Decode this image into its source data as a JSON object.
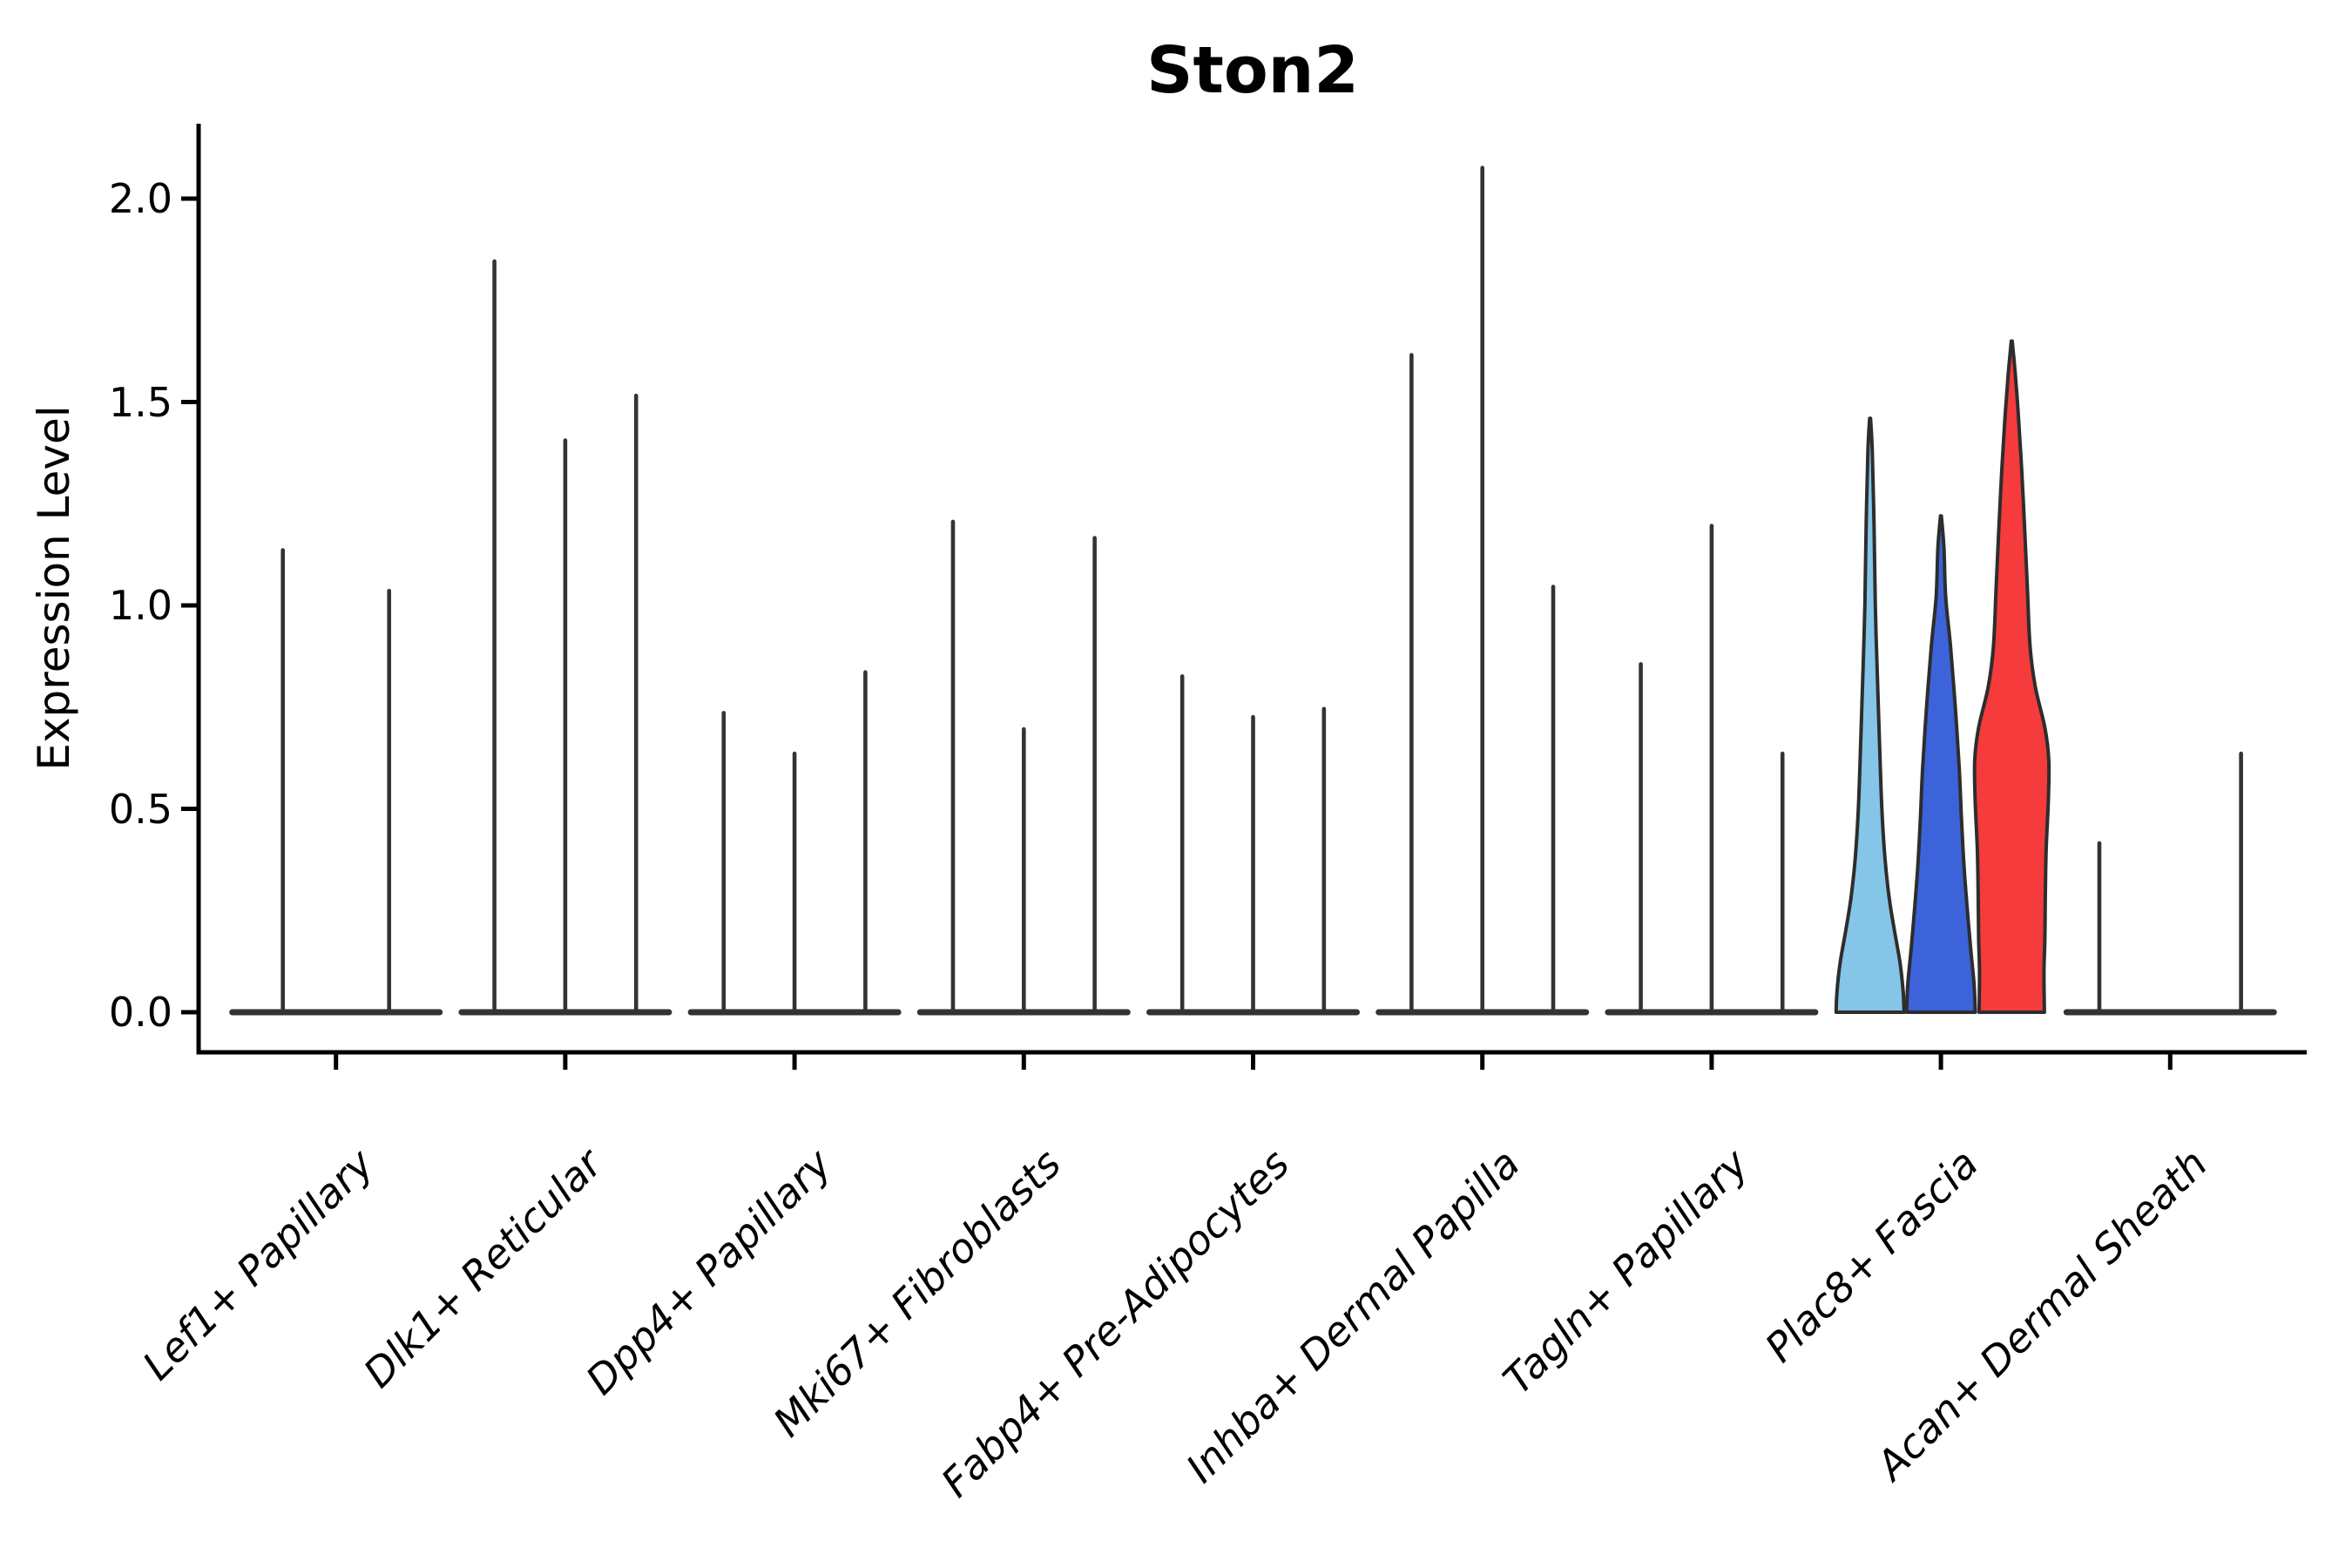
{
  "figure": {
    "title": "Ston2",
    "background_color": "#ffffff",
    "text_color": "#000000"
  },
  "chart_data": {
    "type": "violin",
    "title": "Ston2",
    "xlabel": "",
    "ylabel": "Expression Level",
    "ylim": [
      -0.1,
      2.18
    ],
    "yticks": [
      0.0,
      0.5,
      1.0,
      1.5,
      2.0
    ],
    "ytick_labels": [
      "0.0",
      "0.5",
      "1.0",
      "1.5",
      "2.0"
    ],
    "grid": false,
    "legend_position": "none",
    "categories": [
      "Lef1+ Papillary",
      "Dlk1+ Reticular",
      "Dpp4+ Papillary",
      "Mki67+ Fibroblasts",
      "Fabp4+ Pre-Adipocytes",
      "Inhba+ Dermal Papilla",
      "Tagln+ Papillary",
      "Plac8+ Fascia",
      "Acan+ Dermal Sheath"
    ],
    "colors": {
      "spike_line": "#333333",
      "violin_outline": "#2d2d2d",
      "axis": "#000000",
      "highlight_palette": [
        "#85C5E7",
        "#3C63DA",
        "#F53B3B"
      ]
    },
    "groups": [
      {
        "category": "Lef1+ Papillary",
        "violins": [
          {
            "offset_frac": -0.25,
            "max": 1.14
          },
          {
            "offset_frac": 0.25,
            "max": 1.04
          }
        ]
      },
      {
        "category": "Dlk1+ Reticular",
        "violins": [
          {
            "offset_frac": -0.3333,
            "max": 1.85
          },
          {
            "offset_frac": 0,
            "max": 1.41
          },
          {
            "offset_frac": 0.3333,
            "max": 1.52
          }
        ]
      },
      {
        "category": "Dpp4+ Papillary",
        "violins": [
          {
            "offset_frac": -0.3333,
            "max": 0.74
          },
          {
            "offset_frac": 0,
            "max": 0.64
          },
          {
            "offset_frac": 0.3333,
            "max": 0.84
          }
        ]
      },
      {
        "category": "Mki67+ Fibroblasts",
        "violins": [
          {
            "offset_frac": -0.3333,
            "max": 1.21
          },
          {
            "offset_frac": 0,
            "max": 0.7
          },
          {
            "offset_frac": 0.3333,
            "max": 1.17
          }
        ]
      },
      {
        "category": "Fabp4+ Pre-Adipocytes",
        "violins": [
          {
            "offset_frac": -0.3333,
            "max": 0.83
          },
          {
            "offset_frac": 0,
            "max": 0.73
          },
          {
            "offset_frac": 0.3333,
            "max": 0.75
          }
        ]
      },
      {
        "category": "Inhba+ Dermal Papilla",
        "violins": [
          {
            "offset_frac": -0.3333,
            "max": 1.62
          },
          {
            "offset_frac": 0,
            "max": 2.08
          },
          {
            "offset_frac": 0.3333,
            "max": 1.05
          }
        ]
      },
      {
        "category": "Tagln+ Papillary",
        "violins": [
          {
            "offset_frac": -0.3333,
            "max": 0.86
          },
          {
            "offset_frac": 0,
            "max": 1.2
          },
          {
            "offset_frac": 0.3333,
            "max": 0.64
          }
        ]
      },
      {
        "category": "Plac8+ Fascia",
        "violins": [
          {
            "offset_frac": -0.3333,
            "max": 1.46,
            "color": "#85C5E7",
            "profile": [
              [
                1.46,
                0.5
              ],
              [
                1.38,
                2.5
              ],
              [
                1.2,
                4.5
              ],
              [
                1.0,
                6
              ],
              [
                0.85,
                8
              ],
              [
                0.65,
                11
              ],
              [
                0.5,
                13.5
              ],
              [
                0.38,
                17
              ],
              [
                0.28,
                22
              ],
              [
                0.2,
                28
              ],
              [
                0.12,
                34.5
              ],
              [
                0.05,
                38
              ],
              [
                0,
                39
              ]
            ]
          },
          {
            "offset_frac": 0,
            "max": 1.22,
            "color": "#3C63DA",
            "profile": [
              [
                1.22,
                0.5
              ],
              [
                1.14,
                3.5
              ],
              [
                1.02,
                5.5
              ],
              [
                0.9,
                11
              ],
              [
                0.75,
                16.5
              ],
              [
                0.6,
                21
              ],
              [
                0.48,
                23.5
              ],
              [
                0.36,
                26.5
              ],
              [
                0.26,
                30
              ],
              [
                0.16,
                34
              ],
              [
                0.07,
                38
              ],
              [
                0,
                39.5
              ]
            ]
          },
          {
            "offset_frac": 0.3333,
            "max": 1.65,
            "color": "#F53B3B",
            "profile": [
              [
                1.65,
                0.5
              ],
              [
                1.57,
                4
              ],
              [
                1.47,
                7.5
              ],
              [
                1.33,
                11.5
              ],
              [
                1.18,
                15
              ],
              [
                1.04,
                18
              ],
              [
                0.9,
                21
              ],
              [
                0.8,
                27
              ],
              [
                0.7,
                38
              ],
              [
                0.62,
                42.5
              ],
              [
                0.52,
                42
              ],
              [
                0.4,
                39.5
              ],
              [
                0.28,
                38.5
              ],
              [
                0.18,
                38
              ],
              [
                0.1,
                37
              ],
              [
                0,
                37.5
              ]
            ]
          }
        ]
      },
      {
        "category": "Acan+ Dermal Sheath",
        "violins": [
          {
            "offset_frac": -0.3333,
            "max": 0.42
          },
          {
            "offset_frac": 0,
            "max": 0.0
          },
          {
            "offset_frac": 0.3333,
            "max": 0.64
          }
        ]
      }
    ]
  }
}
